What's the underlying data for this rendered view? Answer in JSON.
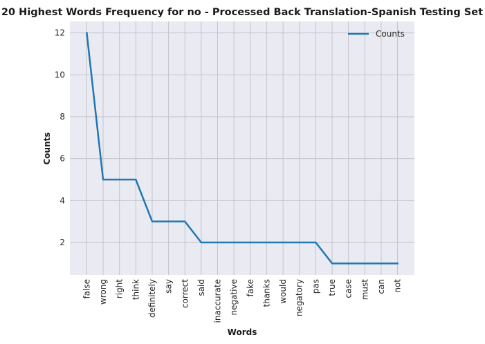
{
  "chart_data": {
    "type": "line",
    "title": "20 Highest Words Frequency for no - Processed Back Translation-Spanish Testing Set",
    "xlabel": "Words",
    "ylabel": "Counts",
    "categories": [
      "false",
      "wrong",
      "right",
      "think",
      "definitely",
      "say",
      "correct",
      "said",
      "inaccurate",
      "negative",
      "fake",
      "thanks",
      "would",
      "negatory",
      "pas",
      "true",
      "case",
      "must",
      "can",
      "not"
    ],
    "series": [
      {
        "name": "Counts",
        "values": [
          12,
          5,
          5,
          5,
          3,
          3,
          3,
          2,
          2,
          2,
          2,
          2,
          2,
          2,
          2,
          1,
          1,
          1,
          1,
          1
        ],
        "color": "#1f77b4"
      }
    ],
    "yticks": [
      2,
      4,
      6,
      8,
      10,
      12
    ],
    "ylim": [
      0.45,
      12.55
    ],
    "grid": true,
    "legend_position": "upper right",
    "background_color": "#eaeaf2",
    "grid_color": "#c0c0c6"
  }
}
